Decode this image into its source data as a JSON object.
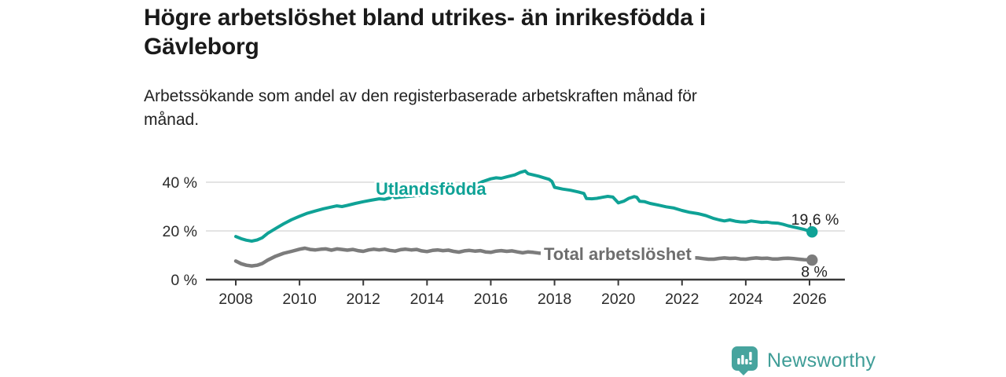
{
  "header": {
    "title_line1": "Högre arbetslöshet bland utrikes- än inrikesfödda i",
    "title_line2": "Gävleborg",
    "subtitle_line1": "Arbetssökande som andel av den registerbaserade arbetskraften månad för",
    "subtitle_line2": "månad."
  },
  "branding": {
    "logo_text": "Newsworthy",
    "logo_icon": "speech-bubble-bar-chart-exclamation",
    "logo_color": "#3f9d97",
    "logo_icon_color": "#47a49e"
  },
  "colors": {
    "background": "#ffffff",
    "title_text": "#1a1a1a",
    "axis_text": "#2b2b2b",
    "gridline": "#dbdbdb",
    "axis_line": "#383838",
    "series_foreign_born": "#0fa296",
    "series_total": "#7c7c7c",
    "series_total_label": "#6e6e6e",
    "end_label_text": "#1f1f1f"
  },
  "chart_data": {
    "type": "line",
    "title": "Högre arbetslöshet bland utrikes- än inrikesfödda i Gävleborg",
    "subtitle": "Arbetssökande som andel av den registerbaserade arbetskraften månad för månad.",
    "xlabel": "",
    "ylabel": "",
    "unit": "%",
    "xlim": [
      2007.05,
      2027.1
    ],
    "ylim": [
      0,
      48
    ],
    "grid": "horizontal",
    "legend": "inline-labels",
    "x_ticks": [
      {
        "value": 2008,
        "label": "2008"
      },
      {
        "value": 2010,
        "label": "2010"
      },
      {
        "value": 2012,
        "label": "2012"
      },
      {
        "value": 2014,
        "label": "2014"
      },
      {
        "value": 2016,
        "label": "2016"
      },
      {
        "value": 2018,
        "label": "2018"
      },
      {
        "value": 2020,
        "label": "2020"
      },
      {
        "value": 2022,
        "label": "2022"
      },
      {
        "value": 2024,
        "label": "2024"
      },
      {
        "value": 2026,
        "label": "2026"
      }
    ],
    "y_ticks": [
      {
        "value": 0,
        "label": "0 %"
      },
      {
        "value": 20,
        "label": "20 %"
      },
      {
        "value": 40,
        "label": "40 %"
      }
    ],
    "series": [
      {
        "name": "Utlandsfödda",
        "color": "#0fa296",
        "end_value": 19.6,
        "end_label": "19,6 %",
        "points": [
          [
            2008.0,
            17.7
          ],
          [
            2008.17,
            16.8
          ],
          [
            2008.33,
            16.2
          ],
          [
            2008.5,
            15.8
          ],
          [
            2008.67,
            16.3
          ],
          [
            2008.83,
            17.2
          ],
          [
            2009.0,
            19.0
          ],
          [
            2009.25,
            21.0
          ],
          [
            2009.5,
            22.9
          ],
          [
            2009.75,
            24.6
          ],
          [
            2010.0,
            26.0
          ],
          [
            2010.25,
            27.3
          ],
          [
            2010.5,
            28.2
          ],
          [
            2010.75,
            29.1
          ],
          [
            2011.0,
            29.8
          ],
          [
            2011.17,
            30.3
          ],
          [
            2011.33,
            30.0
          ],
          [
            2011.5,
            30.5
          ],
          [
            2011.75,
            31.3
          ],
          [
            2012.0,
            32.0
          ],
          [
            2012.25,
            32.6
          ],
          [
            2012.5,
            33.2
          ],
          [
            2012.67,
            33.0
          ],
          [
            2012.83,
            33.5
          ],
          [
            2012.92,
            34.7
          ],
          [
            2013.0,
            33.6
          ],
          [
            2013.25,
            34.0
          ],
          [
            2013.5,
            34.3
          ],
          [
            2013.75,
            34.6
          ],
          [
            2014.0,
            35.0
          ],
          [
            2014.25,
            35.4
          ],
          [
            2014.5,
            35.7
          ],
          [
            2014.67,
            35.2
          ],
          [
            2014.83,
            35.5
          ],
          [
            2015.0,
            36.1
          ],
          [
            2015.25,
            37.2
          ],
          [
            2015.5,
            38.7
          ],
          [
            2015.75,
            40.3
          ],
          [
            2016.0,
            41.4
          ],
          [
            2016.17,
            41.8
          ],
          [
            2016.33,
            41.6
          ],
          [
            2016.5,
            42.2
          ],
          [
            2016.75,
            43.0
          ],
          [
            2016.92,
            44.0
          ],
          [
            2017.08,
            44.6
          ],
          [
            2017.17,
            43.5
          ],
          [
            2017.33,
            43.0
          ],
          [
            2017.5,
            42.5
          ],
          [
            2017.67,
            41.8
          ],
          [
            2017.83,
            41.2
          ],
          [
            2017.92,
            40.3
          ],
          [
            2018.0,
            37.9
          ],
          [
            2018.25,
            37.2
          ],
          [
            2018.5,
            36.7
          ],
          [
            2018.75,
            36.0
          ],
          [
            2018.92,
            35.4
          ],
          [
            2019.0,
            33.3
          ],
          [
            2019.17,
            33.2
          ],
          [
            2019.33,
            33.4
          ],
          [
            2019.5,
            33.8
          ],
          [
            2019.67,
            34.2
          ],
          [
            2019.83,
            33.9
          ],
          [
            2020.0,
            31.5
          ],
          [
            2020.17,
            32.2
          ],
          [
            2020.33,
            33.4
          ],
          [
            2020.5,
            34.1
          ],
          [
            2020.58,
            33.8
          ],
          [
            2020.67,
            32.2
          ],
          [
            2020.83,
            32.0
          ],
          [
            2021.0,
            31.3
          ],
          [
            2021.25,
            30.6
          ],
          [
            2021.5,
            29.9
          ],
          [
            2021.75,
            29.4
          ],
          [
            2022.0,
            28.4
          ],
          [
            2022.25,
            27.6
          ],
          [
            2022.5,
            27.1
          ],
          [
            2022.75,
            26.3
          ],
          [
            2023.0,
            25.1
          ],
          [
            2023.17,
            24.5
          ],
          [
            2023.33,
            24.1
          ],
          [
            2023.5,
            24.5
          ],
          [
            2023.67,
            24.0
          ],
          [
            2023.83,
            23.7
          ],
          [
            2024.0,
            23.6
          ],
          [
            2024.17,
            24.1
          ],
          [
            2024.33,
            23.8
          ],
          [
            2024.5,
            23.5
          ],
          [
            2024.67,
            23.6
          ],
          [
            2024.83,
            23.3
          ],
          [
            2025.0,
            23.2
          ],
          [
            2025.17,
            22.7
          ],
          [
            2025.33,
            22.1
          ],
          [
            2025.5,
            21.6
          ],
          [
            2025.67,
            21.1
          ],
          [
            2025.83,
            20.6
          ],
          [
            2026.0,
            19.9
          ],
          [
            2026.08,
            19.6
          ]
        ]
      },
      {
        "name": "Total arbetslöshet",
        "color": "#7c7c7c",
        "end_value": 8.0,
        "end_label": "8 %",
        "points": [
          [
            2008.0,
            7.6
          ],
          [
            2008.17,
            6.5
          ],
          [
            2008.33,
            5.9
          ],
          [
            2008.5,
            5.6
          ],
          [
            2008.67,
            5.9
          ],
          [
            2008.83,
            6.6
          ],
          [
            2009.0,
            8.0
          ],
          [
            2009.25,
            9.6
          ],
          [
            2009.5,
            10.8
          ],
          [
            2009.75,
            11.6
          ],
          [
            2010.0,
            12.5
          ],
          [
            2010.17,
            12.9
          ],
          [
            2010.33,
            12.4
          ],
          [
            2010.5,
            12.2
          ],
          [
            2010.67,
            12.5
          ],
          [
            2010.83,
            12.6
          ],
          [
            2011.0,
            12.1
          ],
          [
            2011.17,
            12.6
          ],
          [
            2011.33,
            12.4
          ],
          [
            2011.5,
            12.1
          ],
          [
            2011.67,
            12.4
          ],
          [
            2011.83,
            11.9
          ],
          [
            2012.0,
            11.6
          ],
          [
            2012.17,
            12.2
          ],
          [
            2012.33,
            12.5
          ],
          [
            2012.5,
            12.2
          ],
          [
            2012.67,
            12.5
          ],
          [
            2012.83,
            12.0
          ],
          [
            2013.0,
            11.7
          ],
          [
            2013.17,
            12.3
          ],
          [
            2013.33,
            12.5
          ],
          [
            2013.5,
            12.2
          ],
          [
            2013.67,
            12.4
          ],
          [
            2013.83,
            11.8
          ],
          [
            2014.0,
            11.5
          ],
          [
            2014.17,
            12.0
          ],
          [
            2014.33,
            12.2
          ],
          [
            2014.5,
            11.9
          ],
          [
            2014.67,
            12.1
          ],
          [
            2014.83,
            11.6
          ],
          [
            2015.0,
            11.3
          ],
          [
            2015.17,
            11.8
          ],
          [
            2015.33,
            12.0
          ],
          [
            2015.5,
            11.7
          ],
          [
            2015.67,
            11.9
          ],
          [
            2015.83,
            11.4
          ],
          [
            2016.0,
            11.2
          ],
          [
            2016.17,
            11.7
          ],
          [
            2016.33,
            11.9
          ],
          [
            2016.5,
            11.6
          ],
          [
            2016.67,
            11.8
          ],
          [
            2016.83,
            11.4
          ],
          [
            2017.0,
            11.0
          ],
          [
            2017.17,
            11.4
          ],
          [
            2017.33,
            11.2
          ],
          [
            2017.5,
            10.9
          ],
          [
            2017.67,
            10.8
          ],
          [
            2017.83,
            10.6
          ],
          [
            2018.0,
            10.5
          ],
          [
            2018.25,
            10.9
          ],
          [
            2018.5,
            10.7
          ],
          [
            2018.75,
            10.4
          ],
          [
            2019.0,
            10.3
          ],
          [
            2019.25,
            10.6
          ],
          [
            2019.5,
            10.8
          ],
          [
            2019.75,
            10.5
          ],
          [
            2020.0,
            10.6
          ],
          [
            2020.25,
            11.6
          ],
          [
            2020.5,
            12.3
          ],
          [
            2020.75,
            11.8
          ],
          [
            2021.0,
            11.3
          ],
          [
            2021.25,
            10.9
          ],
          [
            2021.5,
            10.3
          ],
          [
            2021.75,
            9.8
          ],
          [
            2022.0,
            9.4
          ],
          [
            2022.17,
            9.2
          ],
          [
            2022.33,
            9.0
          ],
          [
            2022.5,
            8.9
          ],
          [
            2022.67,
            8.6
          ],
          [
            2022.83,
            8.4
          ],
          [
            2023.0,
            8.4
          ],
          [
            2023.17,
            8.7
          ],
          [
            2023.33,
            8.9
          ],
          [
            2023.5,
            8.7
          ],
          [
            2023.67,
            8.8
          ],
          [
            2023.83,
            8.5
          ],
          [
            2024.0,
            8.4
          ],
          [
            2024.17,
            8.7
          ],
          [
            2024.33,
            8.9
          ],
          [
            2024.5,
            8.7
          ],
          [
            2024.67,
            8.8
          ],
          [
            2024.83,
            8.5
          ],
          [
            2025.0,
            8.5
          ],
          [
            2025.17,
            8.7
          ],
          [
            2025.33,
            8.8
          ],
          [
            2025.5,
            8.6
          ],
          [
            2025.67,
            8.4
          ],
          [
            2025.83,
            8.2
          ],
          [
            2026.0,
            8.1
          ],
          [
            2026.08,
            8.0
          ]
        ]
      }
    ]
  }
}
